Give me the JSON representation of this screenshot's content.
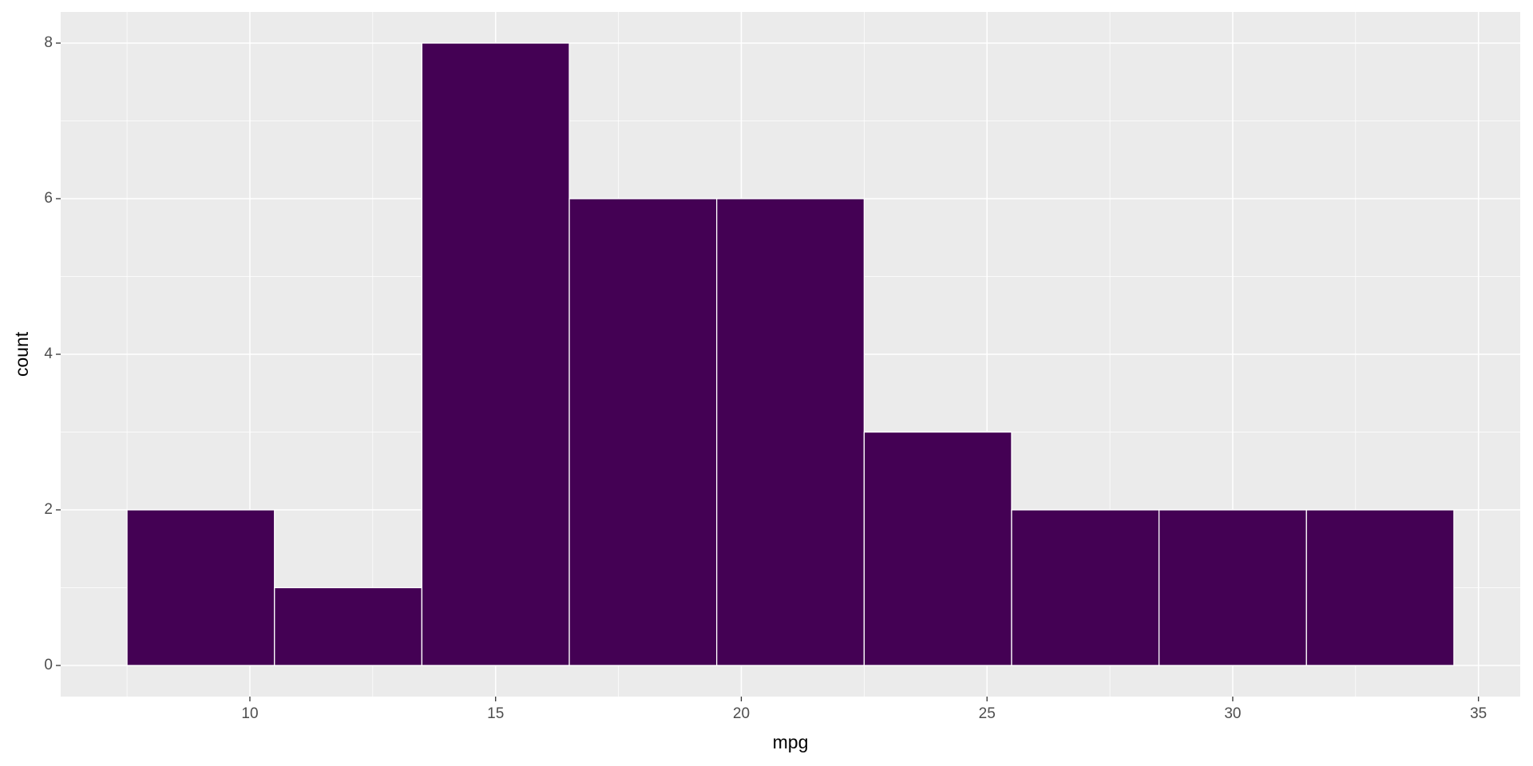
{
  "chart_data": {
    "type": "histogram",
    "x_label": "mpg",
    "y_label": "count",
    "bins": [
      7.5,
      10.5,
      13.5,
      16.5,
      19.5,
      22.5,
      25.5,
      28.5,
      31.5,
      34.5
    ],
    "values": [
      2,
      1,
      8,
      6,
      6,
      3,
      2,
      2,
      2
    ],
    "color": "#440154",
    "edge_color": "#ffffff",
    "xlim": [
      6.15,
      35.85
    ],
    "ylim": [
      -0.4,
      8.4
    ],
    "xticks": [
      10,
      15,
      20,
      25,
      30,
      35
    ],
    "yticks": [
      0,
      2,
      4,
      6,
      8
    ],
    "xminor": [
      7.5,
      12.5,
      17.5,
      22.5,
      27.5,
      32.5
    ],
    "yminor": [
      1,
      3,
      5,
      7
    ],
    "grid": true,
    "panel_color": "#ebebeb"
  }
}
